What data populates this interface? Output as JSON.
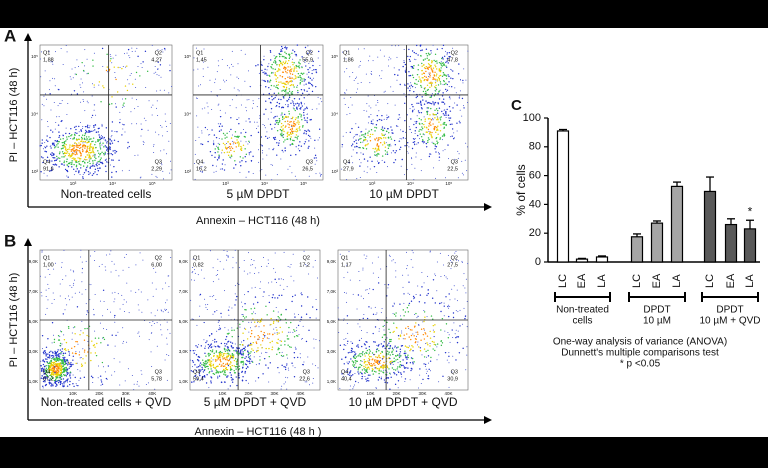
{
  "figure": {
    "rows": [
      {
        "panel": "A",
        "y_label": "PI – HCT116 (48 h)",
        "x_label": "Annexin – HCT116 (48 h)",
        "yticks": [
          "10⁵",
          "10⁴",
          "10³"
        ],
        "xticks": [
          "10³",
          "10⁴",
          "10⁵"
        ],
        "plots": [
          {
            "caption": "Non-treated  cells",
            "quadrants": [
              [
                "Q1",
                "1,88"
              ],
              [
                "Q2",
                "4,27"
              ],
              [
                "Q4",
                "91,6"
              ],
              [
                "Q3",
                "2,29"
              ]
            ]
          },
          {
            "caption": "5 µM DPDT",
            "quadrants": [
              [
                "Q1",
                "1,45"
              ],
              [
                "Q2",
                "55,9"
              ],
              [
                "Q4",
                "16,2"
              ],
              [
                "Q3",
                "26,5"
              ]
            ]
          },
          {
            "caption": "10 µM  DPDT",
            "quadrants": [
              [
                "Q1",
                "1,86"
              ],
              [
                "Q2",
                "47,8"
              ],
              [
                "Q4",
                "27,9"
              ],
              [
                "Q3",
                "22,5"
              ]
            ]
          }
        ]
      },
      {
        "panel": "B",
        "y_label": "PI – HCT116 (48 h)",
        "x_label": "Annexin – HCT116 (48 h )",
        "yticks": [
          "9,0K",
          "7,0K",
          "5,0K",
          "3,0K",
          "1,0K"
        ],
        "xticks": [
          "10K",
          "20K",
          "30K",
          "40K"
        ],
        "plots": [
          {
            "caption": "Non-treated  cells + QVD",
            "quadrants": [
              [
                "Q1",
                "1,00"
              ],
              [
                "Q2",
                "6,00"
              ],
              [
                "Q4",
                "87,2"
              ],
              [
                "Q3",
                "5,78"
              ]
            ]
          },
          {
            "caption": "5 µM DPDT + QVD",
            "quadrants": [
              [
                "Q1",
                "0,82"
              ],
              [
                "Q2",
                "17,2"
              ],
              [
                "Q4",
                "59,4"
              ],
              [
                "Q3",
                "22,6"
              ]
            ]
          },
          {
            "caption": "10 µM DPDT + QVD",
            "quadrants": [
              [
                "Q1",
                "1,17"
              ],
              [
                "Q2",
                "27,5"
              ],
              [
                "Q4",
                "40,4"
              ],
              [
                "Q3",
                "30,9"
              ]
            ]
          }
        ]
      }
    ]
  },
  "chart_data": {
    "type": "bar",
    "title": "C",
    "ylabel": "% of cells",
    "categories": [
      "LC",
      "EA",
      "LA",
      "LC",
      "EA",
      "LA",
      "LC",
      "EA",
      "LA"
    ],
    "values": [
      91,
      2,
      3.5,
      17.5,
      27,
      52.5,
      49,
      26,
      23
    ],
    "errors": [
      1,
      0.5,
      0.7,
      2,
      1.5,
      3,
      10,
      4,
      6
    ],
    "colors": [
      "#ffffff",
      "#ffffff",
      "#ffffff",
      "#a6a6a6",
      "#a6a6a6",
      "#a6a6a6",
      "#595959",
      "#595959",
      "#595959"
    ],
    "groups": [
      [
        "Non-treated",
        "cells"
      ],
      [
        "DPDT",
        "10 µM"
      ],
      [
        "DPDT",
        "10 µM + QVD"
      ]
    ],
    "annotation": "*",
    "notes": [
      "One-way analysis of variance (ANOVA)",
      "Dunnett's multiple comparisons test",
      "* p <0.05"
    ],
    "ylim": [
      0,
      100
    ],
    "yticks": [
      0,
      20,
      40,
      60,
      80,
      100
    ]
  }
}
